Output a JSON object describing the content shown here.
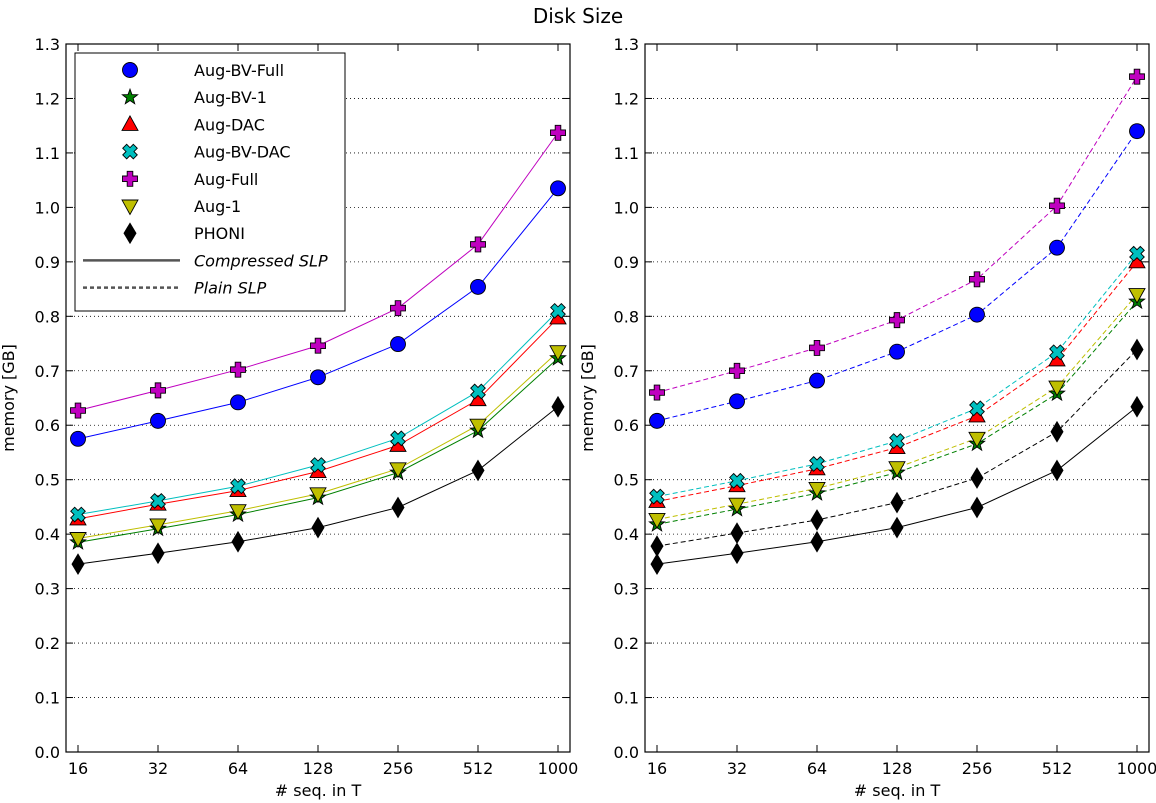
{
  "title": "Disk Size",
  "chart_data": [
    {
      "type": "line",
      "xlabel": "# seq. in T",
      "ylabel": "memory [GB]",
      "x_categories": [
        "16",
        "32",
        "64",
        "128",
        "256",
        "512",
        "1000"
      ],
      "ylim": [
        0.0,
        1.3
      ],
      "yticks": [
        "0.0",
        "0.1",
        "0.2",
        "0.3",
        "0.4",
        "0.5",
        "0.6",
        "0.7",
        "0.8",
        "0.9",
        "1.0",
        "1.1",
        "1.2",
        "1.3"
      ],
      "grid": "horizontal dotted",
      "legend_position": "top-left",
      "series": [
        {
          "name": "Aug-BV-Full",
          "color": "#0000ff",
          "marker": "circle",
          "line": "solid",
          "values": [
            0.575,
            0.608,
            0.642,
            0.688,
            0.749,
            0.854,
            1.035
          ]
        },
        {
          "name": "Aug-BV-1",
          "color": "#008000",
          "marker": "star",
          "line": "solid",
          "values": [
            0.385,
            0.41,
            0.436,
            0.467,
            0.513,
            0.59,
            0.723
          ]
        },
        {
          "name": "Aug-DAC",
          "color": "#ff0000",
          "marker": "triangle-up",
          "line": "solid",
          "values": [
            0.428,
            0.455,
            0.48,
            0.515,
            0.563,
            0.647,
            0.797
          ]
        },
        {
          "name": "Aug-BV-DAC",
          "color": "#00bfbf",
          "marker": "x-filled",
          "line": "solid",
          "values": [
            0.436,
            0.461,
            0.488,
            0.527,
            0.576,
            0.662,
            0.81
          ]
        },
        {
          "name": "Aug-Full",
          "color": "#bf00bf",
          "marker": "plus-filled",
          "line": "solid",
          "values": [
            0.627,
            0.664,
            0.702,
            0.746,
            0.815,
            0.932,
            1.137
          ]
        },
        {
          "name": "Aug-1",
          "color": "#bfbf00",
          "marker": "triangle-down",
          "line": "solid",
          "values": [
            0.392,
            0.417,
            0.443,
            0.474,
            0.52,
            0.6,
            0.735
          ]
        },
        {
          "name": "PHONI",
          "color": "#000000",
          "marker": "diamond",
          "line": "solid",
          "values": [
            0.345,
            0.365,
            0.386,
            0.412,
            0.449,
            0.517,
            0.634
          ]
        }
      ],
      "legend": {
        "entries": [
          "Aug-BV-Full",
          "Aug-BV-1",
          "Aug-DAC",
          "Aug-BV-DAC",
          "Aug-Full",
          "Aug-1",
          "PHONI"
        ],
        "line_styles": [
          {
            "label": "Compressed SLP",
            "style": "solid"
          },
          {
            "label": "Plain SLP",
            "style": "dashed"
          }
        ]
      }
    },
    {
      "type": "line",
      "xlabel": "# seq. in T",
      "ylabel": "memory [GB]",
      "x_categories": [
        "16",
        "32",
        "64",
        "128",
        "256",
        "512",
        "1000"
      ],
      "ylim": [
        0.0,
        1.3
      ],
      "yticks": [
        "0.0",
        "0.1",
        "0.2",
        "0.3",
        "0.4",
        "0.5",
        "0.6",
        "0.7",
        "0.8",
        "0.9",
        "1.0",
        "1.1",
        "1.2",
        "1.3"
      ],
      "grid": "horizontal dotted",
      "series": [
        {
          "name": "Aug-BV-Full",
          "color": "#0000ff",
          "marker": "circle",
          "line": "dashed",
          "values": [
            0.608,
            0.644,
            0.682,
            0.735,
            0.803,
            0.926,
            1.14
          ]
        },
        {
          "name": "Aug-BV-1",
          "color": "#008000",
          "marker": "star",
          "line": "dashed",
          "values": [
            0.418,
            0.446,
            0.475,
            0.513,
            0.566,
            0.658,
            0.827
          ]
        },
        {
          "name": "Aug-DAC",
          "color": "#ff0000",
          "marker": "triangle-up",
          "line": "dashed",
          "values": [
            0.46,
            0.489,
            0.52,
            0.559,
            0.617,
            0.72,
            0.9
          ]
        },
        {
          "name": "Aug-BV-DAC",
          "color": "#00bfbf",
          "marker": "x-filled",
          "line": "dashed",
          "values": [
            0.469,
            0.498,
            0.529,
            0.571,
            0.631,
            0.734,
            0.915
          ]
        },
        {
          "name": "Aug-Full",
          "color": "#bf00bf",
          "marker": "plus-filled",
          "line": "dashed",
          "values": [
            0.66,
            0.7,
            0.742,
            0.793,
            0.868,
            1.003,
            1.24
          ]
        },
        {
          "name": "Aug-1",
          "color": "#bfbf00",
          "marker": "triangle-down",
          "line": "dashed",
          "values": [
            0.427,
            0.455,
            0.484,
            0.522,
            0.576,
            0.67,
            0.84
          ]
        },
        {
          "name": "PHONI",
          "color": "#000000",
          "marker": "diamond",
          "line": "dashed",
          "values": [
            0.378,
            0.402,
            0.426,
            0.458,
            0.503,
            0.588,
            0.739
          ]
        },
        {
          "name": "PHONI",
          "color": "#000000",
          "marker": "diamond",
          "line": "solid",
          "values": [
            0.345,
            0.365,
            0.386,
            0.412,
            0.449,
            0.517,
            0.634
          ]
        }
      ]
    }
  ]
}
